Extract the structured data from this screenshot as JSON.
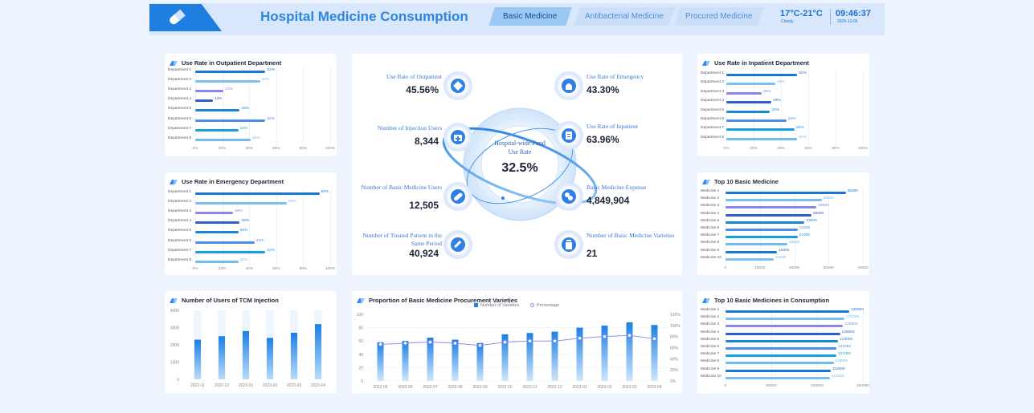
{
  "header": {
    "title": "Hospital Medicine Consumption",
    "tabs": [
      "Basic Medicine",
      "Antibacterial Medicine",
      "Procured Medicine"
    ],
    "weather_temp": "17°C-21°C",
    "weather_desc": "Cloudy",
    "time": "09:46:37",
    "date": "2025-12-05"
  },
  "outpatient": {
    "title": "Use Rate in Outpatient Department",
    "rows": [
      {
        "label": "Department 1",
        "value": 52,
        "text": "52%"
      },
      {
        "label": "Department 2",
        "value": 48,
        "text": "48%"
      },
      {
        "label": "Department 3",
        "value": 21,
        "text": "21%"
      },
      {
        "label": "Department 4",
        "value": 13,
        "text": "13%"
      },
      {
        "label": "Department 5",
        "value": 33,
        "text": "33%"
      },
      {
        "label": "Department 6",
        "value": 52,
        "text": "52%"
      },
      {
        "label": "Department 7",
        "value": 32,
        "text": "32%"
      },
      {
        "label": "Department 8",
        "value": 41,
        "text": "41%"
      }
    ],
    "ticks": [
      "0%",
      "20%",
      "40%",
      "60%",
      "80%",
      "100%"
    ]
  },
  "emergency": {
    "title": "Use Rate in Emergency Department",
    "rows": [
      {
        "label": "Department 1",
        "value": 92,
        "text": "92%"
      },
      {
        "label": "Department 2",
        "value": 68,
        "text": "68%"
      },
      {
        "label": "Department 3",
        "value": 28,
        "text": "28%"
      },
      {
        "label": "Department 4",
        "value": 33,
        "text": "33%"
      },
      {
        "label": "Department 5",
        "value": 32,
        "text": "32%"
      },
      {
        "label": "Department 6",
        "value": 44,
        "text": "44%"
      },
      {
        "label": "Department 7",
        "value": 52,
        "text": "52%"
      },
      {
        "label": "Department 8",
        "value": 32,
        "text": "32%"
      }
    ],
    "ticks": [
      "0%",
      "20%",
      "40%",
      "60%",
      "80%",
      "100%"
    ]
  },
  "inpatient": {
    "title": "Use Rate in Inpatient Department",
    "rows": [
      {
        "label": "Department 1",
        "value": 52,
        "text": "52%"
      },
      {
        "label": "Department 2",
        "value": 36,
        "text": "36%"
      },
      {
        "label": "Department 3",
        "value": 26,
        "text": "26%"
      },
      {
        "label": "Department 4",
        "value": 33,
        "text": "33%"
      },
      {
        "label": "Department 5",
        "value": 32,
        "text": "32%"
      },
      {
        "label": "Department 6",
        "value": 44,
        "text": "44%"
      },
      {
        "label": "Department 7",
        "value": 50,
        "text": "50%"
      },
      {
        "label": "Department 8",
        "value": 52,
        "text": "52%"
      }
    ],
    "ticks": [
      "0%",
      "20%",
      "40%",
      "60%",
      "80%",
      "100%"
    ]
  },
  "top10_basic": {
    "title": "Top 10 Basic Medicine",
    "rows": [
      {
        "label": "Medicine 1",
        "value": 35000,
        "text": "35000"
      },
      {
        "label": "Medicine 2",
        "value": 28000,
        "text": "28000"
      },
      {
        "label": "Medicine 3",
        "value": 26500,
        "text": "26500"
      },
      {
        "label": "Medicine 4",
        "value": 25000,
        "text": "25000"
      },
      {
        "label": "Medicine 5",
        "value": 23000,
        "text": "23000"
      },
      {
        "label": "Medicine 6",
        "value": 21050,
        "text": "21050"
      },
      {
        "label": "Medicine 7",
        "value": 21000,
        "text": "21000"
      },
      {
        "label": "Medicine 8",
        "value": 18000,
        "text": "18000"
      },
      {
        "label": "Medicine 9",
        "value": 15000,
        "text": "15000"
      },
      {
        "label": "Medicine 10",
        "value": 14000,
        "text": "14000"
      }
    ],
    "ticks": [
      "0",
      "10000",
      "20000",
      "30000",
      "40000"
    ]
  },
  "top10_consumption": {
    "title": "Top 10 Basic Medicines in Consumption",
    "rows": [
      {
        "label": "Medicine 1",
        "value": 135000,
        "text": "135000"
      },
      {
        "label": "Medicine 2",
        "value": 130000,
        "text": "130000"
      },
      {
        "label": "Medicine 3",
        "value": 128500,
        "text": "128500"
      },
      {
        "label": "Medicine 4",
        "value": 125000,
        "text": "125000"
      },
      {
        "label": "Medicine 5",
        "value": 123000,
        "text": "123000"
      },
      {
        "label": "Medicine 6",
        "value": 121050,
        "text": "121050"
      },
      {
        "label": "Medicine 7",
        "value": 121000,
        "text": "121000"
      },
      {
        "label": "Medicine 8",
        "value": 118000,
        "text": "118000"
      },
      {
        "label": "Medicine 9",
        "value": 115000,
        "text": "115000"
      },
      {
        "label": "Medicine 10",
        "value": 114000,
        "text": "114000"
      }
    ],
    "ticks": [
      "0",
      "50000",
      "100000",
      "150000"
    ]
  },
  "center": {
    "fund_label": "Hospital-wide Fund Use Rate",
    "fund_value": "32.5%",
    "stats": [
      {
        "label": "Use Rate of Outpatient",
        "value": "45.56%",
        "icon": "diamond-icon"
      },
      {
        "label": "Use Rate of Emergency",
        "value": "43.30%",
        "icon": "siren-icon"
      },
      {
        "label": "Number of Injection Users",
        "value": "8,344",
        "icon": "medical-bag-icon"
      },
      {
        "label": "Use Rate of Inpatient",
        "value": "63.96%",
        "icon": "clipboard-icon"
      },
      {
        "label": "Number of Basic Medicine Users",
        "value": "12,505",
        "icon": "capsule-icon"
      },
      {
        "label": "Basic Medicine Expense",
        "value": "4,849,904",
        "icon": "pills-icon"
      },
      {
        "label": "Number of Treated Patient in the Same Period",
        "value": "40,924",
        "icon": "syringe-icon"
      },
      {
        "label": "Number of Basic Medicine Varieties",
        "value": "21",
        "icon": "medicine-bottle-icon"
      }
    ]
  },
  "tcm": {
    "title": "Number of Users of TCM Injection",
    "chart_data": {
      "type": "bar",
      "categories": [
        "2022-11",
        "2022-12",
        "2023-01",
        "2023-02",
        "2023-03",
        "2023-04"
      ],
      "values": [
        2300,
        2500,
        2800,
        2400,
        2700,
        3200
      ],
      "ylim": [
        0,
        4000
      ],
      "yticks": [
        "4000",
        "3000",
        "2000",
        "1000",
        "0"
      ]
    }
  },
  "procurement": {
    "title": "Proportion of Basic Medicine Procurement Varieties",
    "legend": [
      "Number of Varieties",
      "Percentage"
    ],
    "chart_data": {
      "type": "bar",
      "categories": [
        "2022-05",
        "2022-06",
        "2022-07",
        "2022-08",
        "2022-09",
        "2022-10",
        "2022-11",
        "2022-12",
        "2023-01",
        "2023-02",
        "2023-03",
        "2023-04"
      ],
      "series": [
        {
          "name": "Number of Varieties",
          "values": [
            58,
            60,
            65,
            62,
            57,
            70,
            72,
            74,
            80,
            83,
            88,
            84
          ]
        },
        {
          "name": "Percentage",
          "values": [
            66,
            68,
            70,
            68,
            64,
            70,
            72,
            72,
            77,
            80,
            82,
            76
          ]
        }
      ],
      "ylim": [
        0,
        100
      ],
      "yticks_left": [
        "100",
        "80",
        "60",
        "40",
        "20",
        "0"
      ],
      "yticks_right": [
        "120%",
        "100%",
        "80%",
        "60%",
        "40%",
        "20%",
        "0%"
      ]
    }
  },
  "colors": {
    "accent": "#2a86e2",
    "bar_palette": [
      "#1777d6",
      "#79c1f3",
      "#8a85ec",
      "#2e5fd0",
      "#1a86d8",
      "#4b8ef0",
      "#15a0e0",
      "#6fbdf0"
    ]
  }
}
